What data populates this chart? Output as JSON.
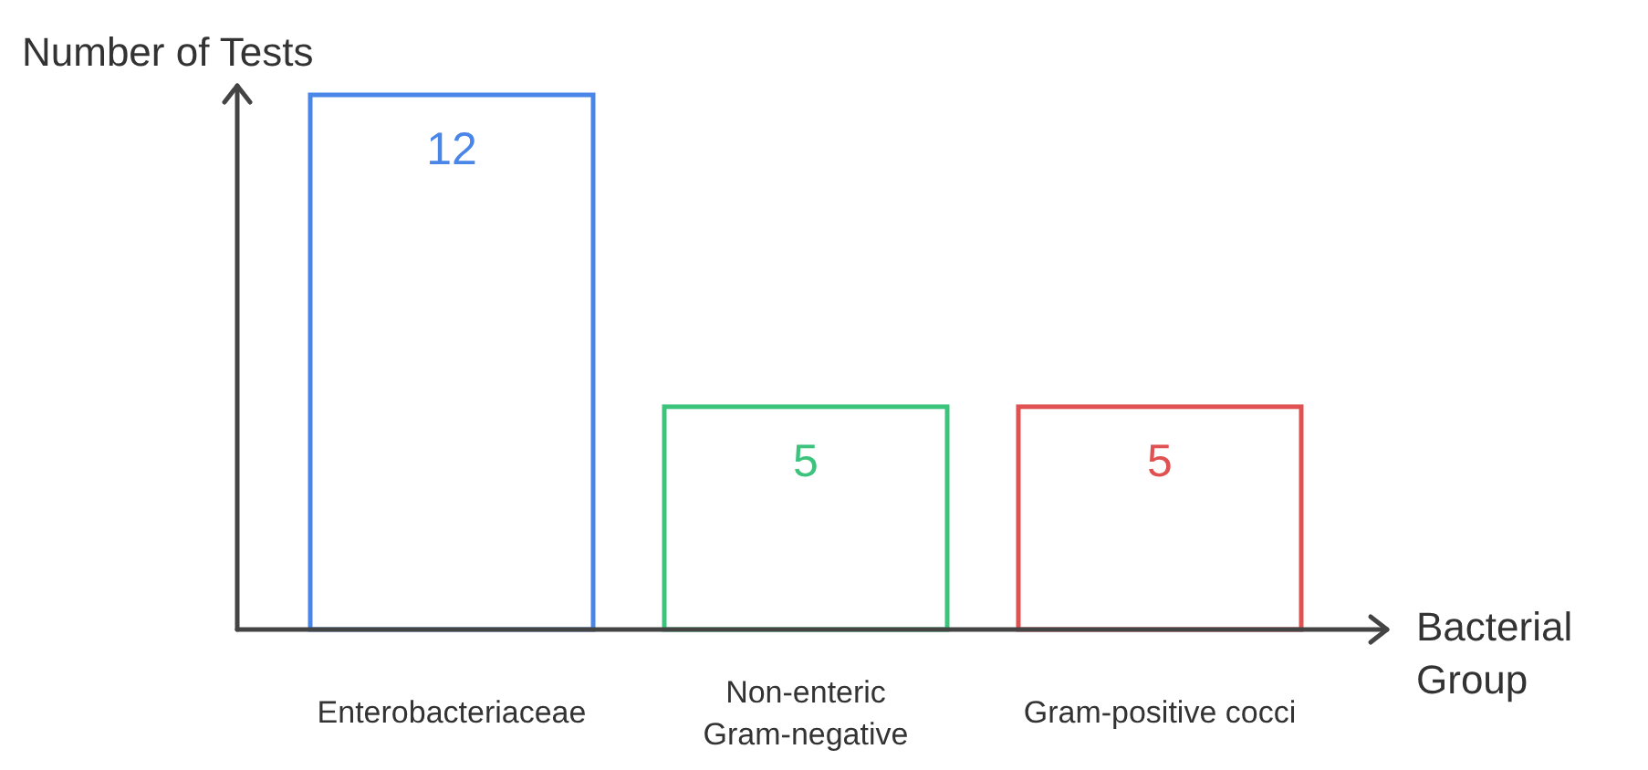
{
  "chart_data": {
    "type": "bar",
    "xlabel": "Bacterial Group",
    "ylabel": "Number of Tests",
    "categories": [
      "Enterobacteriaceae",
      "Non-enteric Gram-negative",
      "Gram-positive cocci"
    ],
    "values": [
      12,
      5,
      5
    ],
    "colors": [
      "#4a86e8",
      "#3cc47c",
      "#e05252"
    ],
    "data_labels": true
  }
}
